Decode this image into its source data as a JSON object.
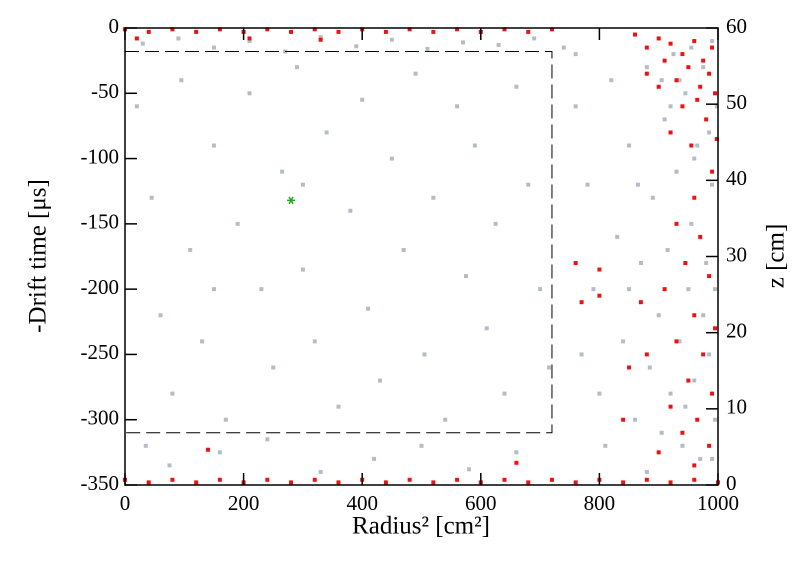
{
  "chart_data": {
    "type": "scatter",
    "x_label": "Radius² [cm²]",
    "y_label": "-Drift time [μs]",
    "y2_label": "z [cm]",
    "xlim": [
      0,
      1000
    ],
    "ylim": [
      -350,
      0
    ],
    "y2lim": [
      0,
      60
    ],
    "xticks": [
      0,
      200,
      400,
      600,
      800,
      1000
    ],
    "yticks": [
      -350,
      -300,
      -250,
      -200,
      -150,
      -100,
      -50,
      0
    ],
    "y2ticks": [
      0,
      10,
      20,
      30,
      40,
      50,
      60
    ],
    "cut_box": {
      "x": [
        0,
        720
      ],
      "y": [
        -310,
        -18
      ],
      "color": "#000000"
    },
    "series": [
      {
        "color": "#b4bcc8",
        "x": [
          20,
          45,
          60,
          80,
          95,
          110,
          130,
          150,
          170,
          190,
          210,
          230,
          250,
          265,
          290,
          300,
          320,
          340,
          360,
          380,
          400,
          410,
          430,
          450,
          470,
          490,
          505,
          520,
          540,
          560,
          575,
          590,
          610,
          625,
          640,
          660,
          680,
          700,
          715,
          35,
          75,
          160,
          240,
          330,
          420,
          500,
          580,
          660,
          300,
          150,
          30,
          90,
          150,
          210,
          270,
          330,
          390,
          450,
          510,
          570,
          630,
          690,
          740,
          760,
          760,
          780,
          790,
          800,
          810,
          820,
          830,
          840,
          850,
          860,
          870,
          880,
          885,
          890,
          900,
          905,
          910,
          915,
          920,
          925,
          930,
          935,
          940,
          945,
          950,
          955,
          960,
          965,
          970,
          975,
          980,
          985,
          990,
          995,
          998,
          975,
          955,
          935,
          990,
          960,
          920,
          880,
          850,
          770,
          945,
          985,
          995,
          905,
          865,
          990
        ],
        "values": [
          -60,
          -130,
          -220,
          -280,
          -40,
          -170,
          -240,
          -90,
          -300,
          -150,
          -50,
          -200,
          -260,
          -110,
          -30,
          -185,
          -240,
          -80,
          -290,
          -140,
          -55,
          -215,
          -270,
          -100,
          -170,
          -35,
          -250,
          -130,
          -300,
          -60,
          -190,
          -90,
          -230,
          -150,
          -280,
          -45,
          -120,
          -200,
          -260,
          -320,
          -335,
          -325,
          -315,
          -340,
          -330,
          -320,
          -338,
          -325,
          -120,
          -200,
          -12,
          -8,
          -15,
          -10,
          -18,
          -7,
          -14,
          -9,
          -16,
          -11,
          -13,
          -8,
          -15,
          -20,
          -60,
          -120,
          -200,
          -280,
          -320,
          -40,
          -160,
          -240,
          -90,
          -300,
          -180,
          -30,
          -260,
          -130,
          -220,
          -310,
          -70,
          -170,
          -280,
          -20,
          -110,
          -240,
          -320,
          -50,
          -200,
          -150,
          -270,
          -90,
          -330,
          -30,
          -180,
          -250,
          -120,
          -300,
          -60,
          -220,
          -15,
          -40,
          -10,
          -100,
          -60,
          -340,
          -200,
          -250,
          -290,
          -80,
          -200,
          -40,
          -120,
          -330
        ]
      },
      {
        "color": "#ee1111",
        "x": [
          0,
          40,
          80,
          120,
          160,
          200,
          240,
          280,
          320,
          360,
          400,
          440,
          480,
          520,
          560,
          600,
          640,
          680,
          720,
          20,
          210,
          330,
          0,
          40,
          80,
          120,
          160,
          200,
          240,
          280,
          320,
          360,
          400,
          440,
          480,
          520,
          560,
          600,
          640,
          680,
          720,
          760,
          800,
          840,
          880,
          920,
          960,
          1000,
          860,
          880,
          900,
          910,
          920,
          930,
          940,
          950,
          960,
          965,
          970,
          975,
          980,
          985,
          990,
          995,
          998,
          900,
          880,
          940,
          955,
          920,
          990,
          960,
          930,
          970,
          945,
          985,
          910,
          960,
          930,
          975,
          950,
          990,
          920,
          965,
          940,
          985,
          900,
          960,
          995,
          880,
          870,
          850,
          840,
          760,
          770,
          800,
          800,
          660,
          140
        ],
        "values": [
          -1,
          -3,
          -1,
          -3,
          -1,
          -3,
          -1,
          -3,
          -1,
          -3,
          -1,
          -3,
          -1,
          -3,
          -1,
          -3,
          -1,
          -3,
          -1,
          -8,
          -8,
          -9,
          -346,
          -348,
          -346,
          -348,
          -346,
          -348,
          -346,
          -348,
          -346,
          -348,
          -346,
          -348,
          -346,
          -348,
          -346,
          -348,
          -346,
          -348,
          -346,
          -348,
          -346,
          -348,
          -346,
          -348,
          -346,
          -348,
          -5,
          -15,
          -8,
          -25,
          -12,
          -40,
          -20,
          -30,
          -10,
          -55,
          -45,
          -25,
          -70,
          -35,
          -15,
          -50,
          -85,
          -45,
          -35,
          -60,
          -90,
          -80,
          -110,
          -130,
          -150,
          -160,
          -180,
          -190,
          -200,
          -220,
          -240,
          -250,
          -270,
          -280,
          -290,
          -300,
          -310,
          -320,
          -325,
          -335,
          -230,
          -250,
          -210,
          -260,
          -300,
          -180,
          -210,
          -185,
          -205,
          -333,
          -323
        ]
      },
      {
        "color": "#22aa22",
        "x": [
          280
        ],
        "values": [
          -132
        ]
      }
    ]
  }
}
